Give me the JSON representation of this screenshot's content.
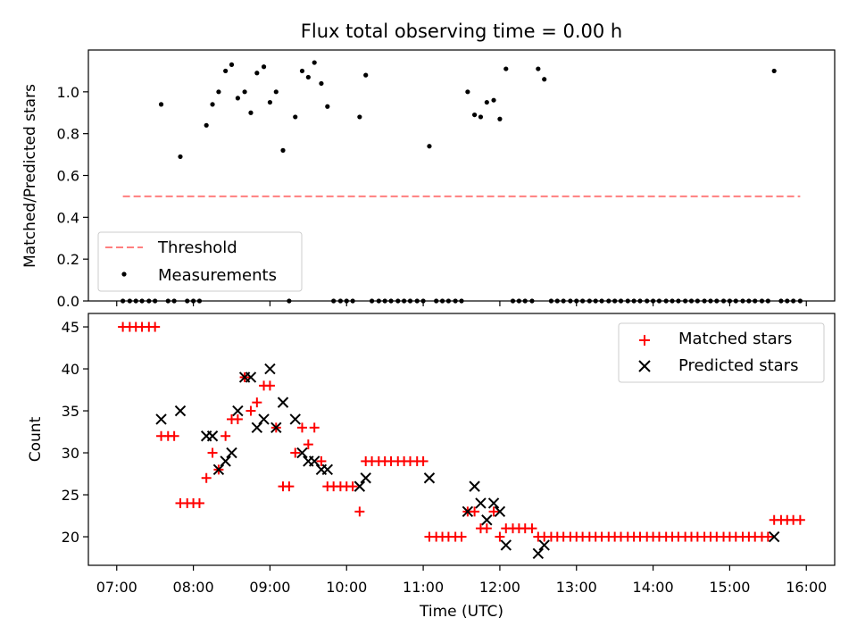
{
  "chart_data": [
    {
      "type": "scatter",
      "title": "Flux total observing time = 0.00 h",
      "xlabel": "",
      "ylabel": "Matched/Predicted stars",
      "xlim": [
        6.63,
        16.37
      ],
      "ylim": [
        0.0,
        1.2
      ],
      "yticks": [
        0.0,
        0.2,
        0.4,
        0.6,
        0.8,
        1.0
      ],
      "ytick_labels": [
        "0.0",
        "0.2",
        "0.4",
        "0.6",
        "0.8",
        "1.0"
      ],
      "legend_position": "lower-left",
      "threshold": {
        "name": "Threshold",
        "y": 0.5,
        "x_start": 7.08,
        "x_end": 15.92,
        "color": "#ff7f7f",
        "style": "dashed"
      },
      "measurements": {
        "name": "Measurements",
        "color": "#000000",
        "points": [
          [
            7.08,
            0.0
          ],
          [
            7.17,
            0.0
          ],
          [
            7.25,
            0.0
          ],
          [
            7.33,
            0.0
          ],
          [
            7.42,
            0.0
          ],
          [
            7.5,
            0.0
          ],
          [
            7.58,
            0.94
          ],
          [
            7.67,
            0.0
          ],
          [
            7.75,
            0.0
          ],
          [
            7.83,
            0.69
          ],
          [
            7.92,
            0.0
          ],
          [
            8.0,
            0.0
          ],
          [
            8.08,
            0.0
          ],
          [
            8.17,
            0.84
          ],
          [
            8.25,
            0.94
          ],
          [
            8.33,
            1.0
          ],
          [
            8.42,
            1.1
          ],
          [
            8.5,
            1.13
          ],
          [
            8.58,
            0.97
          ],
          [
            8.67,
            1.0
          ],
          [
            8.75,
            0.9
          ],
          [
            8.83,
            1.09
          ],
          [
            8.92,
            1.12
          ],
          [
            9.0,
            0.95
          ],
          [
            9.08,
            1.0
          ],
          [
            9.17,
            0.72
          ],
          [
            9.25,
            0.0
          ],
          [
            9.33,
            0.88
          ],
          [
            9.42,
            1.1
          ],
          [
            9.5,
            1.07
          ],
          [
            9.58,
            1.14
          ],
          [
            9.67,
            1.04
          ],
          [
            9.75,
            0.93
          ],
          [
            9.83,
            0.0
          ],
          [
            9.92,
            0.0
          ],
          [
            10.0,
            0.0
          ],
          [
            10.08,
            0.0
          ],
          [
            10.17,
            0.88
          ],
          [
            10.25,
            1.08
          ],
          [
            10.33,
            0.0
          ],
          [
            10.42,
            0.0
          ],
          [
            10.5,
            0.0
          ],
          [
            10.58,
            0.0
          ],
          [
            10.67,
            0.0
          ],
          [
            10.75,
            0.0
          ],
          [
            10.83,
            0.0
          ],
          [
            10.92,
            0.0
          ],
          [
            11.0,
            0.0
          ],
          [
            11.08,
            0.74
          ],
          [
            11.17,
            0.0
          ],
          [
            11.25,
            0.0
          ],
          [
            11.33,
            0.0
          ],
          [
            11.42,
            0.0
          ],
          [
            11.5,
            0.0
          ],
          [
            11.58,
            1.0
          ],
          [
            11.67,
            0.89
          ],
          [
            11.75,
            0.88
          ],
          [
            11.83,
            0.95
          ],
          [
            11.92,
            0.96
          ],
          [
            12.0,
            0.87
          ],
          [
            12.08,
            1.11
          ],
          [
            12.17,
            0.0
          ],
          [
            12.25,
            0.0
          ],
          [
            12.33,
            0.0
          ],
          [
            12.42,
            0.0
          ],
          [
            12.5,
            1.11
          ],
          [
            12.58,
            1.06
          ],
          [
            12.67,
            0.0
          ],
          [
            12.75,
            0.0
          ],
          [
            12.83,
            0.0
          ],
          [
            12.92,
            0.0
          ],
          [
            13.0,
            0.0
          ],
          [
            13.08,
            0.0
          ],
          [
            13.17,
            0.0
          ],
          [
            13.25,
            0.0
          ],
          [
            13.33,
            0.0
          ],
          [
            13.42,
            0.0
          ],
          [
            13.5,
            0.0
          ],
          [
            13.58,
            0.0
          ],
          [
            13.67,
            0.0
          ],
          [
            13.75,
            0.0
          ],
          [
            13.83,
            0.0
          ],
          [
            13.92,
            0.0
          ],
          [
            14.0,
            0.0
          ],
          [
            14.08,
            0.0
          ],
          [
            14.17,
            0.0
          ],
          [
            14.25,
            0.0
          ],
          [
            14.33,
            0.0
          ],
          [
            14.42,
            0.0
          ],
          [
            14.5,
            0.0
          ],
          [
            14.58,
            0.0
          ],
          [
            14.67,
            0.0
          ],
          [
            14.75,
            0.0
          ],
          [
            14.83,
            0.0
          ],
          [
            14.92,
            0.0
          ],
          [
            15.0,
            0.0
          ],
          [
            15.08,
            0.0
          ],
          [
            15.17,
            0.0
          ],
          [
            15.25,
            0.0
          ],
          [
            15.33,
            0.0
          ],
          [
            15.42,
            0.0
          ],
          [
            15.5,
            0.0
          ],
          [
            15.58,
            1.1
          ],
          [
            15.67,
            0.0
          ],
          [
            15.75,
            0.0
          ],
          [
            15.83,
            0.0
          ],
          [
            15.92,
            0.0
          ]
        ]
      }
    },
    {
      "type": "scatter",
      "title": "",
      "xlabel": "Time (UTC)",
      "ylabel": "Count",
      "xlim": [
        6.63,
        16.37
      ],
      "ylim": [
        16.6,
        46.6
      ],
      "xticks": [
        7,
        8,
        9,
        10,
        11,
        12,
        13,
        14,
        15,
        16
      ],
      "xtick_labels": [
        "07:00",
        "08:00",
        "09:00",
        "10:00",
        "11:00",
        "12:00",
        "13:00",
        "14:00",
        "15:00",
        "16:00"
      ],
      "yticks": [
        20,
        25,
        30,
        35,
        40,
        45
      ],
      "ytick_labels": [
        "20",
        "25",
        "30",
        "35",
        "40",
        "45"
      ],
      "legend_position": "top-right",
      "series": [
        {
          "name": "Matched stars",
          "marker": "+",
          "color": "#ff0000",
          "points": [
            [
              7.08,
              45
            ],
            [
              7.17,
              45
            ],
            [
              7.25,
              45
            ],
            [
              7.33,
              45
            ],
            [
              7.42,
              45
            ],
            [
              7.5,
              45
            ],
            [
              7.58,
              32
            ],
            [
              7.67,
              32
            ],
            [
              7.75,
              32
            ],
            [
              7.83,
              24
            ],
            [
              7.92,
              24
            ],
            [
              8.0,
              24
            ],
            [
              8.08,
              24
            ],
            [
              8.17,
              27
            ],
            [
              8.25,
              30
            ],
            [
              8.33,
              28
            ],
            [
              8.42,
              32
            ],
            [
              8.5,
              34
            ],
            [
              8.58,
              34
            ],
            [
              8.67,
              39
            ],
            [
              8.75,
              35
            ],
            [
              8.83,
              36
            ],
            [
              8.92,
              38
            ],
            [
              9.0,
              38
            ],
            [
              9.08,
              33
            ],
            [
              9.17,
              26
            ],
            [
              9.25,
              26
            ],
            [
              9.33,
              30
            ],
            [
              9.42,
              33
            ],
            [
              9.5,
              31
            ],
            [
              9.58,
              33
            ],
            [
              9.67,
              29
            ],
            [
              9.75,
              26
            ],
            [
              9.83,
              26
            ],
            [
              9.92,
              26
            ],
            [
              10.0,
              26
            ],
            [
              10.08,
              26
            ],
            [
              10.17,
              23
            ],
            [
              10.25,
              29
            ],
            [
              10.33,
              29
            ],
            [
              10.42,
              29
            ],
            [
              10.5,
              29
            ],
            [
              10.58,
              29
            ],
            [
              10.67,
              29
            ],
            [
              10.75,
              29
            ],
            [
              10.83,
              29
            ],
            [
              10.92,
              29
            ],
            [
              11.0,
              29
            ],
            [
              11.08,
              20
            ],
            [
              11.17,
              20
            ],
            [
              11.25,
              20
            ],
            [
              11.33,
              20
            ],
            [
              11.42,
              20
            ],
            [
              11.5,
              20
            ],
            [
              11.58,
              23
            ],
            [
              11.67,
              23
            ],
            [
              11.75,
              21
            ],
            [
              11.83,
              21
            ],
            [
              11.92,
              23
            ],
            [
              12.0,
              20
            ],
            [
              12.08,
              21
            ],
            [
              12.17,
              21
            ],
            [
              12.25,
              21
            ],
            [
              12.33,
              21
            ],
            [
              12.42,
              21
            ],
            [
              12.5,
              20
            ],
            [
              12.58,
              20
            ],
            [
              12.67,
              20
            ],
            [
              12.75,
              20
            ],
            [
              12.83,
              20
            ],
            [
              12.92,
              20
            ],
            [
              13.0,
              20
            ],
            [
              13.08,
              20
            ],
            [
              13.17,
              20
            ],
            [
              13.25,
              20
            ],
            [
              13.33,
              20
            ],
            [
              13.42,
              20
            ],
            [
              13.5,
              20
            ],
            [
              13.58,
              20
            ],
            [
              13.67,
              20
            ],
            [
              13.75,
              20
            ],
            [
              13.83,
              20
            ],
            [
              13.92,
              20
            ],
            [
              14.0,
              20
            ],
            [
              14.08,
              20
            ],
            [
              14.17,
              20
            ],
            [
              14.25,
              20
            ],
            [
              14.33,
              20
            ],
            [
              14.42,
              20
            ],
            [
              14.5,
              20
            ],
            [
              14.58,
              20
            ],
            [
              14.67,
              20
            ],
            [
              14.75,
              20
            ],
            [
              14.83,
              20
            ],
            [
              14.92,
              20
            ],
            [
              15.0,
              20
            ],
            [
              15.08,
              20
            ],
            [
              15.17,
              20
            ],
            [
              15.25,
              20
            ],
            [
              15.33,
              20
            ],
            [
              15.42,
              20
            ],
            [
              15.5,
              20
            ],
            [
              15.58,
              22
            ],
            [
              15.67,
              22
            ],
            [
              15.75,
              22
            ],
            [
              15.83,
              22
            ],
            [
              15.92,
              22
            ]
          ]
        },
        {
          "name": "Predicted stars",
          "marker": "x",
          "color": "#000000",
          "points": [
            [
              7.58,
              34
            ],
            [
              7.83,
              35
            ],
            [
              8.17,
              32
            ],
            [
              8.25,
              32
            ],
            [
              8.33,
              28
            ],
            [
              8.42,
              29
            ],
            [
              8.5,
              30
            ],
            [
              8.58,
              35
            ],
            [
              8.67,
              39
            ],
            [
              8.75,
              39
            ],
            [
              8.83,
              33
            ],
            [
              8.92,
              34
            ],
            [
              9.0,
              40
            ],
            [
              9.08,
              33
            ],
            [
              9.17,
              36
            ],
            [
              9.33,
              34
            ],
            [
              9.42,
              30
            ],
            [
              9.5,
              29
            ],
            [
              9.58,
              29
            ],
            [
              9.67,
              28
            ],
            [
              9.75,
              28
            ],
            [
              10.17,
              26
            ],
            [
              10.25,
              27
            ],
            [
              11.08,
              27
            ],
            [
              11.58,
              23
            ],
            [
              11.67,
              26
            ],
            [
              11.75,
              24
            ],
            [
              11.83,
              22
            ],
            [
              11.92,
              24
            ],
            [
              12.0,
              23
            ],
            [
              12.08,
              19
            ],
            [
              12.5,
              18
            ],
            [
              12.58,
              19
            ],
            [
              15.58,
              20
            ]
          ]
        }
      ]
    }
  ]
}
